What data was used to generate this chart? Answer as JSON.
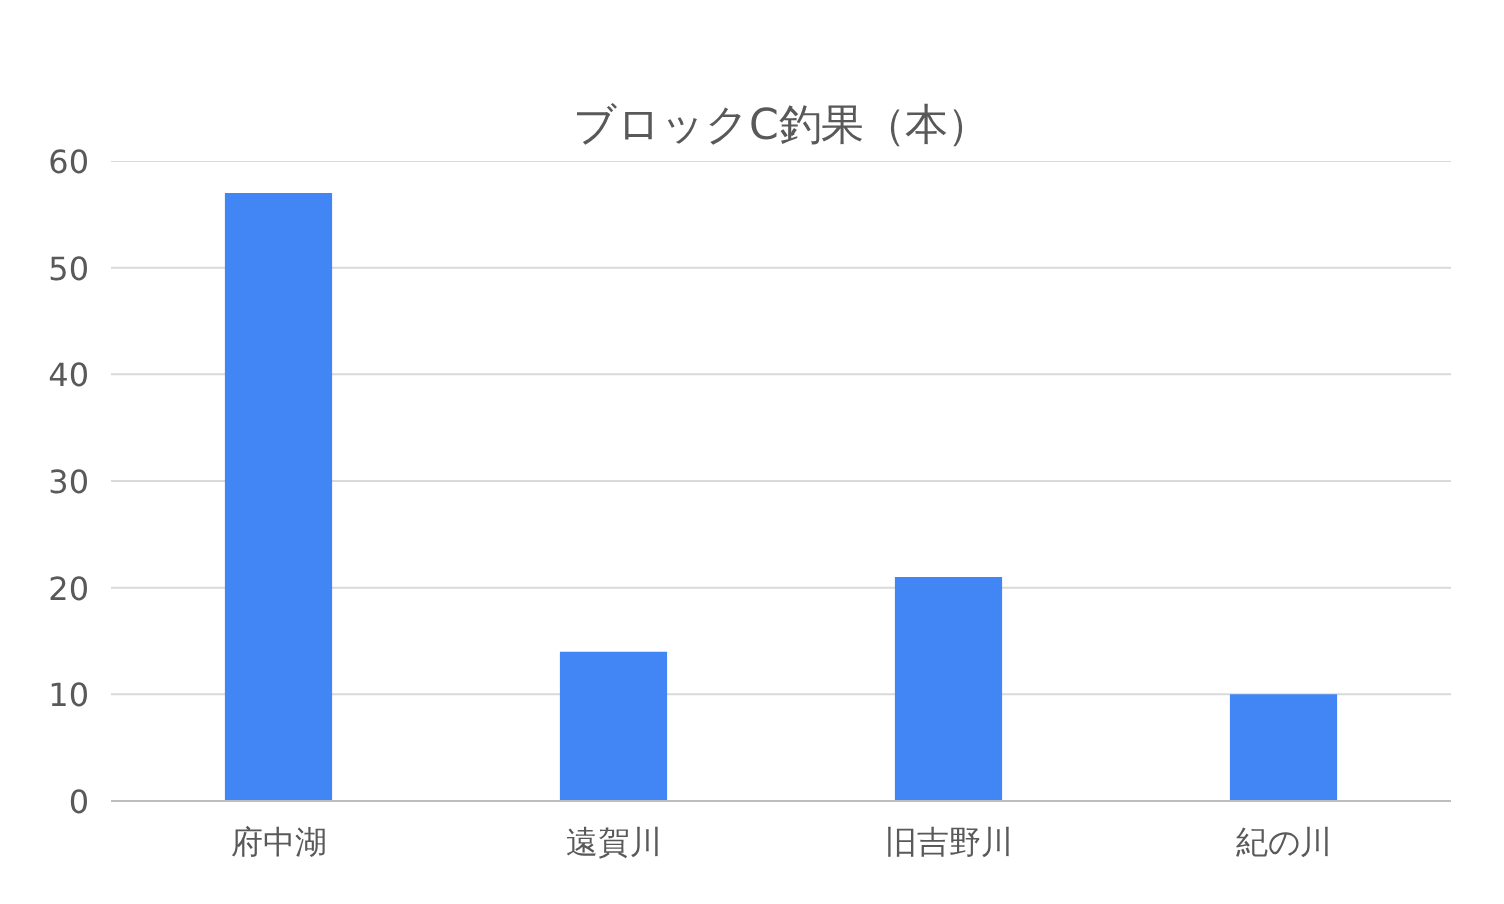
{
  "chart_data": {
    "type": "bar",
    "title": "ブロックC釣果（本）",
    "categories": [
      "府中湖",
      "遠賀川",
      "旧吉野川",
      "紀の川"
    ],
    "values": [
      57,
      14,
      21,
      10
    ],
    "color": "#4285f4",
    "ylim": [
      0,
      60
    ],
    "yticks": [
      0,
      10,
      20,
      30,
      40,
      50,
      60
    ],
    "grid": "y"
  }
}
